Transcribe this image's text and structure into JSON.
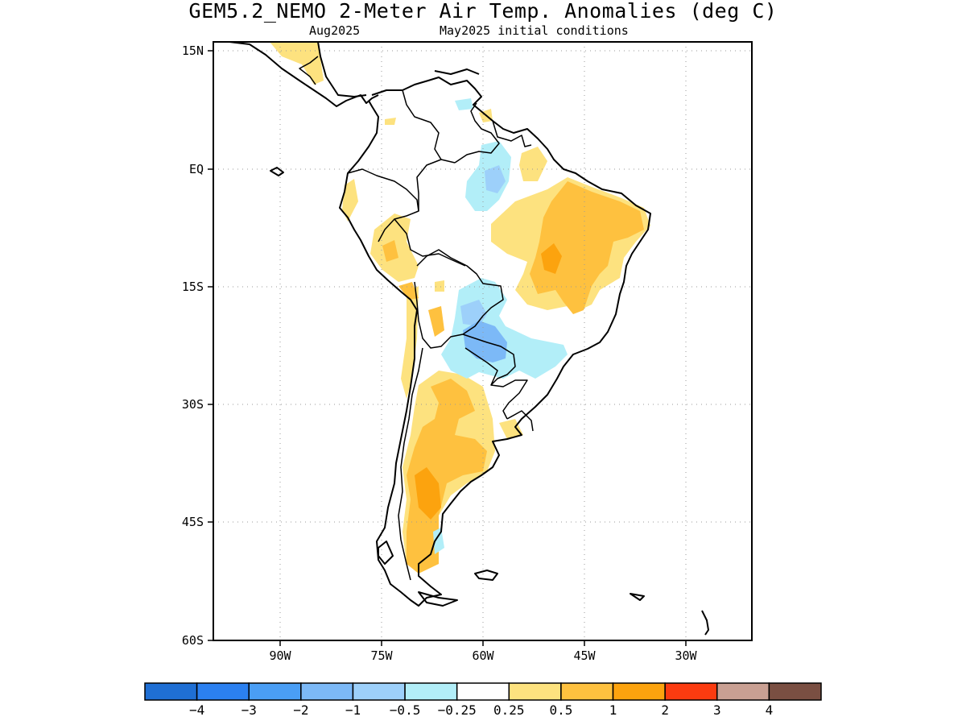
{
  "title": "GEM5.2_NEMO 2-Meter Air Temp. Anomalies (deg C)",
  "subtitle_left": "Aug2025",
  "subtitle_right": "May2025 initial conditions",
  "lat_labels": [
    "15N",
    "EQ",
    "15S",
    "30S",
    "45S",
    "60S"
  ],
  "lon_labels": [
    "90W",
    "75W",
    "60W",
    "45W",
    "30W"
  ],
  "colorbar": {
    "colors": [
      "#1f6fd4",
      "#2b80f0",
      "#4a9ef5",
      "#7cb9f7",
      "#9dd0fa",
      "#b2eef8",
      "#ffffff",
      "#fde27f",
      "#fec13f",
      "#fca30e",
      "#fb3b10",
      "#c9a093",
      "#7a4f42"
    ],
    "labels": [
      "−4",
      "−3",
      "−2",
      "−1",
      "−0.5",
      "−0.25",
      "0.25",
      "0.5",
      "1",
      "2",
      "3",
      "4"
    ]
  }
}
